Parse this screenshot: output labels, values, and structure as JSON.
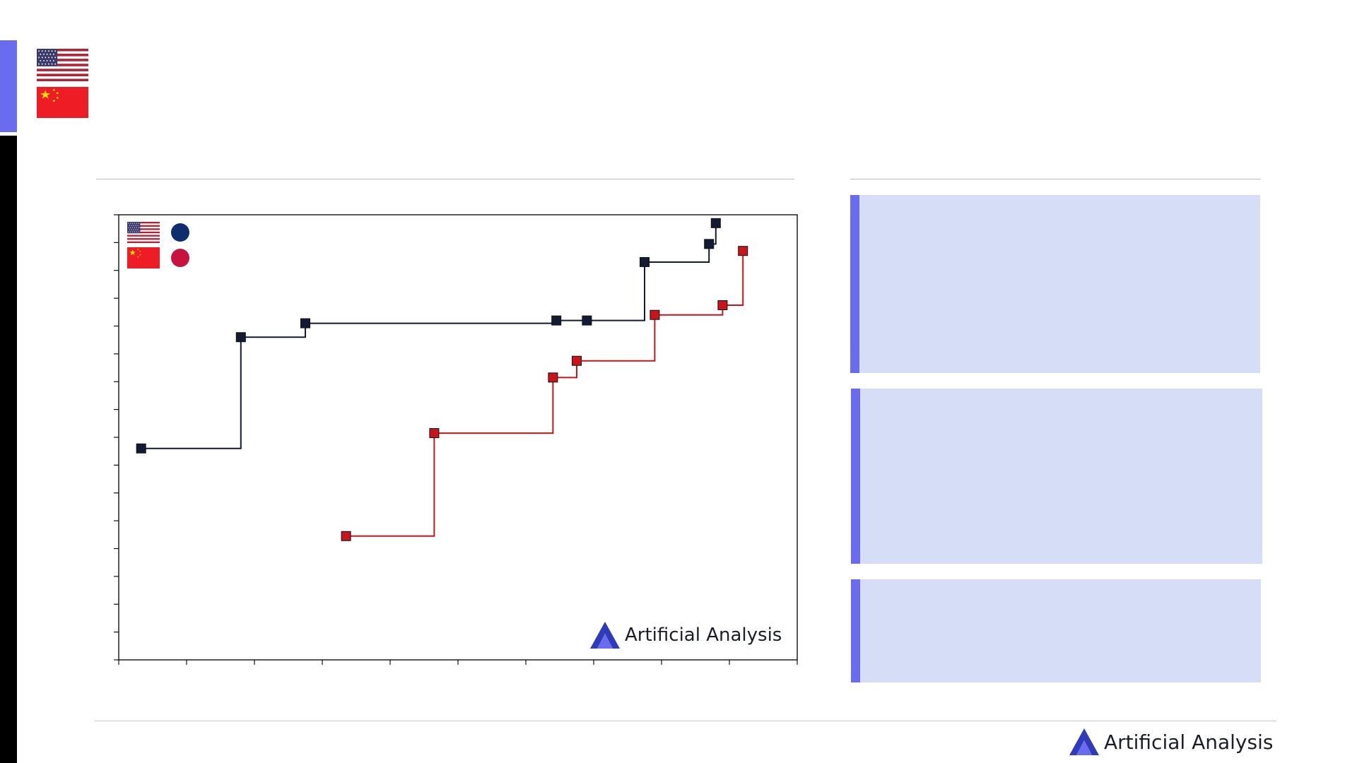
{
  "colors": {
    "accent": "#6a6cf0",
    "panel_bg": "#d6ddf7",
    "us_series": "#131a33",
    "china_series": "#c8141c",
    "us_dot": "#0d2d6e",
    "china_dot": "#c8123f",
    "sidebar": "#000000"
  },
  "header": {
    "flags": [
      {
        "country": "United States",
        "icon": "us-flag-icon"
      },
      {
        "country": "China",
        "icon": "china-flag-icon"
      }
    ]
  },
  "chart_data": {
    "type": "line",
    "title": "",
    "xlabel": "",
    "ylabel": "",
    "grid": false,
    "step": true,
    "x_ticks": 10,
    "y_ticks": 16,
    "xlim": [
      0,
      10
    ],
    "ylim": [
      0,
      16
    ],
    "legend": {
      "placement": "top-left",
      "entries": [
        {
          "icon": "us-flag-icon",
          "color": "#0d2d6e"
        },
        {
          "icon": "china-flag-icon",
          "color": "#c8123f"
        }
      ]
    },
    "series": [
      {
        "color": "#131a33",
        "points": [
          {
            "x": 0.33,
            "y": 7.6
          },
          {
            "x": 1.8,
            "y": 11.6
          },
          {
            "x": 2.75,
            "y": 12.1
          },
          {
            "x": 6.45,
            "y": 12.2
          },
          {
            "x": 6.9,
            "y": 12.2
          },
          {
            "x": 7.75,
            "y": 14.3
          },
          {
            "x": 8.7,
            "y": 14.95
          },
          {
            "x": 8.8,
            "y": 15.7
          }
        ]
      },
      {
        "color": "#c8141c",
        "points": [
          {
            "x": 3.35,
            "y": 4.45
          },
          {
            "x": 4.65,
            "y": 8.15
          },
          {
            "x": 6.4,
            "y": 10.15
          },
          {
            "x": 6.75,
            "y": 10.75
          },
          {
            "x": 7.9,
            "y": 12.4
          },
          {
            "x": 8.9,
            "y": 12.75
          },
          {
            "x": 9.2,
            "y": 14.7
          }
        ]
      }
    ]
  },
  "logo": {
    "text": "Artificial Analysis",
    "icon": "artificial-analysis-logo-icon"
  },
  "panels": [
    {
      "id": "panel-1"
    },
    {
      "id": "panel-2"
    },
    {
      "id": "panel-3"
    }
  ]
}
